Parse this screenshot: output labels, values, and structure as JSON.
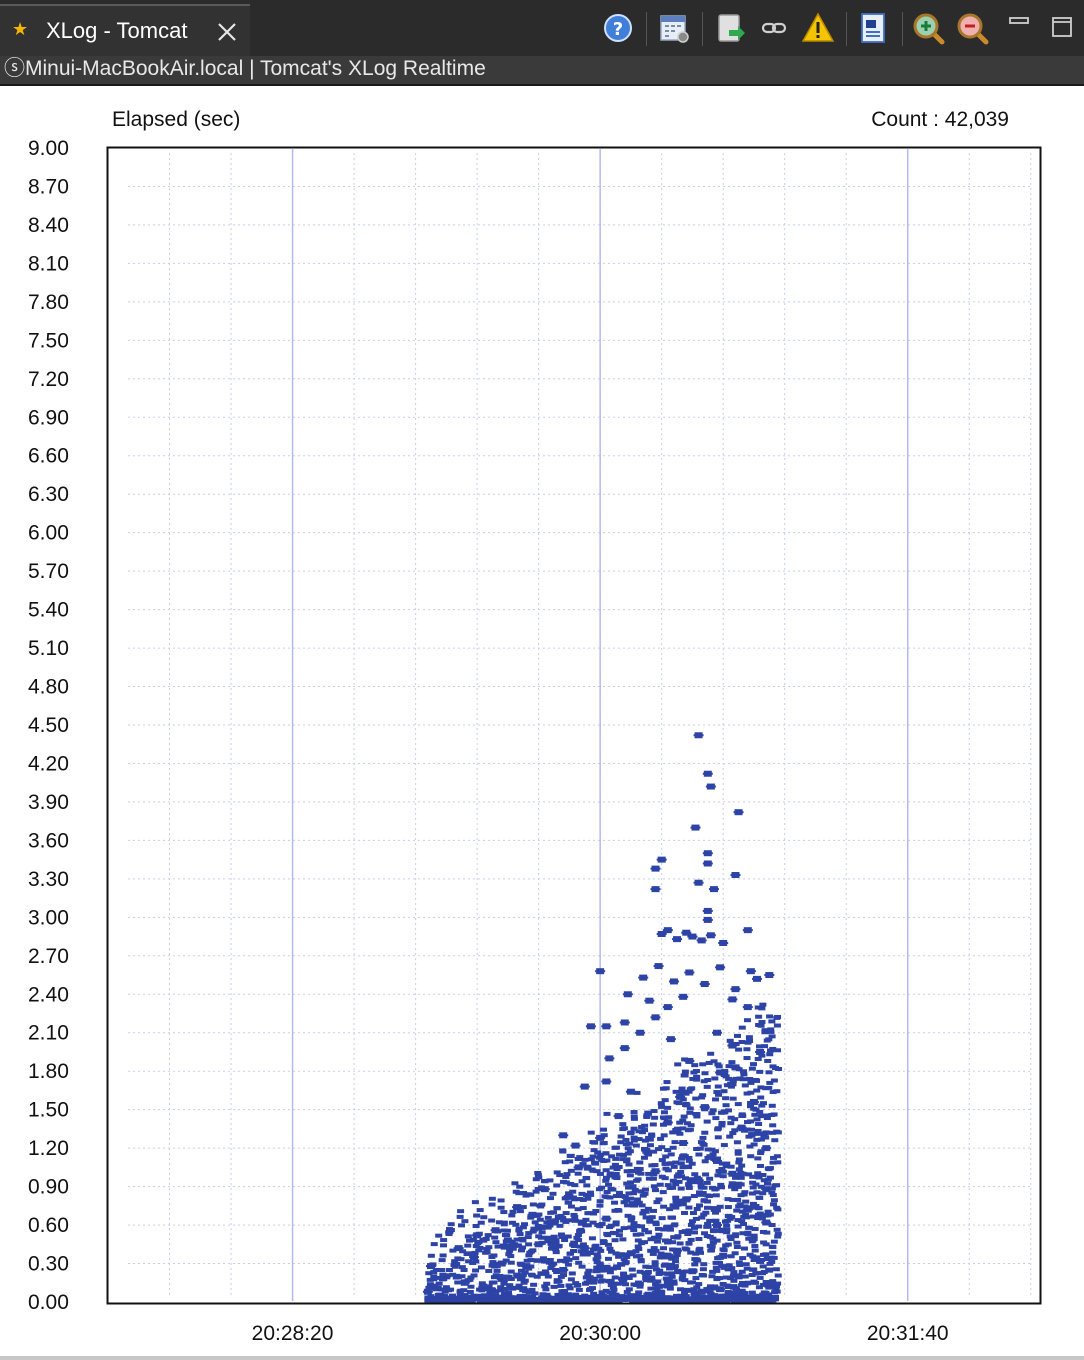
{
  "tab": {
    "title": "XLog - Tomcat",
    "star_icon": "star-icon",
    "close_icon": "close-icon"
  },
  "subtitle": "ⓢMinui-MacBookAir.local | Tomcat's XLog Realtime",
  "toolbar": [
    "help-icon",
    "calendar-settings-icon",
    "export-icon",
    "link-icon",
    "warning-icon",
    "document-search-icon",
    "zoom-in-icon",
    "zoom-out-icon",
    "minimize-icon",
    "maximize-icon"
  ],
  "colors": {
    "point": "#2d43a6",
    "grid_major": "#b3baf0",
    "grid_minor": "#c9cdee",
    "accent_star": "#f2b705",
    "warning": "#f5c400"
  },
  "chart_data": {
    "type": "scatter",
    "ylabel": "Elapsed (sec)",
    "count_label": "Count : 42,039",
    "ylim": [
      0,
      9
    ],
    "yticks": [
      "0.00",
      "0.30",
      "0.60",
      "0.90",
      "1.20",
      "1.50",
      "1.80",
      "2.10",
      "2.40",
      "2.70",
      "3.00",
      "3.30",
      "3.60",
      "3.90",
      "4.20",
      "4.50",
      "4.80",
      "5.10",
      "5.40",
      "5.70",
      "6.00",
      "6.30",
      "6.60",
      "6.90",
      "7.20",
      "7.50",
      "7.80",
      "8.10",
      "8.40",
      "8.70",
      "9.00"
    ],
    "xlim": [
      "20:27:20",
      "20:32:23"
    ],
    "xticks": [
      "20:28:20",
      "20:30:00",
      "20:31:40"
    ],
    "grid": true,
    "series": [
      {
        "points": [
          [
            "20:30:32",
            4.42
          ],
          [
            "20:30:35",
            4.12
          ],
          [
            "20:30:36",
            4.02
          ],
          [
            "20:30:45",
            3.82
          ],
          [
            "20:30:31",
            3.7
          ],
          [
            "20:30:35",
            3.5
          ],
          [
            "20:30:35",
            3.42
          ],
          [
            "20:30:20",
            3.45
          ],
          [
            "20:30:18",
            3.38
          ],
          [
            "20:30:18",
            3.22
          ],
          [
            "20:30:32",
            3.27
          ],
          [
            "20:30:37",
            3.22
          ],
          [
            "20:30:44",
            3.33
          ],
          [
            "20:30:35",
            3.05
          ],
          [
            "20:30:35",
            2.98
          ],
          [
            "20:30:48",
            2.9
          ],
          [
            "20:30:20",
            2.87
          ],
          [
            "20:30:22",
            2.9
          ],
          [
            "20:30:25",
            2.83
          ],
          [
            "20:30:28",
            2.88
          ],
          [
            "20:30:30",
            2.85
          ],
          [
            "20:30:33",
            2.82
          ],
          [
            "20:30:36",
            2.86
          ],
          [
            "20:30:40",
            2.8
          ],
          [
            "20:30:00",
            2.58
          ],
          [
            "20:30:14",
            2.53
          ],
          [
            "20:30:19",
            2.62
          ],
          [
            "20:30:24",
            2.5
          ],
          [
            "20:30:29",
            2.57
          ],
          [
            "20:30:34",
            2.48
          ],
          [
            "20:30:39",
            2.61
          ],
          [
            "20:30:44",
            2.44
          ],
          [
            "20:30:49",
            2.58
          ],
          [
            "20:30:51",
            2.52
          ],
          [
            "20:30:55",
            2.55
          ],
          [
            "20:30:09",
            2.4
          ],
          [
            "20:30:16",
            2.35
          ],
          [
            "20:30:22",
            2.3
          ],
          [
            "20:30:27",
            2.38
          ],
          [
            "20:30:43",
            2.36
          ],
          [
            "20:30:48",
            2.3
          ],
          [
            "20:29:57",
            2.15
          ],
          [
            "20:30:02",
            2.15
          ],
          [
            "20:30:08",
            2.18
          ],
          [
            "20:30:13",
            2.1
          ],
          [
            "20:30:18",
            2.22
          ],
          [
            "20:30:23",
            2.05
          ],
          [
            "20:30:38",
            2.1
          ],
          [
            "20:30:43",
            2.0
          ],
          [
            "20:30:08",
            1.98
          ],
          [
            "20:30:03",
            1.9
          ],
          [
            "20:30:29",
            1.88
          ],
          [
            "20:30:39",
            1.79
          ],
          [
            "20:30:44",
            1.83
          ],
          [
            "20:30:52",
            1.95
          ],
          [
            "20:29:55",
            1.68
          ],
          [
            "20:30:02",
            1.72
          ],
          [
            "20:30:10",
            1.64
          ],
          [
            "20:30:26",
            1.6
          ],
          [
            "20:30:34",
            1.52
          ],
          [
            "20:30:50",
            1.56
          ],
          [
            "20:30:06",
            1.45
          ],
          [
            "20:30:22",
            1.4
          ],
          [
            "20:30:46",
            1.36
          ],
          [
            "20:29:48",
            1.3
          ],
          [
            "20:29:52",
            1.22
          ],
          [
            "20:30:00",
            1.28
          ],
          [
            "20:30:15",
            1.18
          ],
          [
            "20:30:27",
            1.24
          ],
          [
            "20:30:38",
            1.1
          ],
          [
            "20:30:54",
            1.2
          ],
          [
            "20:29:53",
            1.05
          ],
          [
            "20:30:05",
            0.98
          ],
          [
            "20:30:18",
            1.02
          ],
          [
            "20:30:32",
            0.95
          ],
          [
            "20:30:43",
            1.0
          ],
          [
            "20:30:54",
            0.88
          ],
          [
            "20:29:42",
            0.88
          ],
          [
            "20:29:50",
            0.82
          ],
          [
            "20:30:11",
            0.76
          ],
          [
            "20:30:28",
            0.8
          ],
          [
            "20:30:48",
            0.72
          ],
          [
            "20:29:33",
            0.74
          ],
          [
            "20:29:38",
            0.68
          ],
          [
            "20:29:45",
            0.62
          ],
          [
            "20:30:02",
            0.65
          ],
          [
            "20:30:22",
            0.58
          ],
          [
            "20:30:38",
            0.6
          ],
          [
            "20:30:54",
            0.62
          ],
          [
            "20:29:26",
            0.56
          ],
          [
            "20:29:20",
            0.52
          ],
          [
            "20:29:30",
            0.48
          ],
          [
            "20:29:40",
            0.45
          ],
          [
            "20:29:55",
            0.42
          ],
          [
            "20:30:10",
            0.38
          ],
          [
            "20:30:25",
            0.4
          ],
          [
            "20:30:40",
            0.36
          ],
          [
            "20:30:52",
            0.32
          ],
          [
            "20:29:14",
            0.42
          ],
          [
            "20:29:19",
            0.35
          ],
          [
            "20:29:28",
            0.3
          ],
          [
            "20:29:36",
            0.28
          ],
          [
            "20:29:48",
            0.25
          ],
          [
            "20:30:00",
            0.27
          ],
          [
            "20:30:15",
            0.22
          ],
          [
            "20:30:30",
            0.24
          ],
          [
            "20:30:45",
            0.2
          ],
          [
            "20:29:05",
            0.28
          ],
          [
            "20:29:10",
            0.2
          ],
          [
            "20:29:16",
            0.15
          ],
          [
            "20:29:22",
            0.12
          ],
          [
            "20:29:28",
            0.18
          ],
          [
            "20:29:35",
            0.1
          ],
          [
            "20:29:04",
            0.08
          ],
          [
            "20:29:08",
            0.05
          ],
          [
            "20:29:12",
            0.02
          ],
          [
            "20:29:20",
            0.03
          ],
          [
            "20:29:30",
            0.02
          ],
          [
            "20:29:42",
            0.04
          ],
          [
            "20:29:55",
            0.03
          ],
          [
            "20:30:05",
            0.05
          ],
          [
            "20:30:06",
            0.02
          ],
          [
            "20:30:15",
            0.03
          ],
          [
            "20:30:25",
            0.04
          ],
          [
            "20:30:33",
            0.08
          ],
          [
            "20:30:35",
            0.03
          ],
          [
            "20:30:45",
            0.02
          ],
          [
            "20:30:46",
            0.08
          ],
          [
            "20:30:53",
            0.05
          ],
          [
            "20:30:56",
            0.02
          ],
          [
            "20:30:39",
            0.1
          ],
          [
            "20:30:55",
            0.12
          ]
        ]
      }
    ]
  }
}
